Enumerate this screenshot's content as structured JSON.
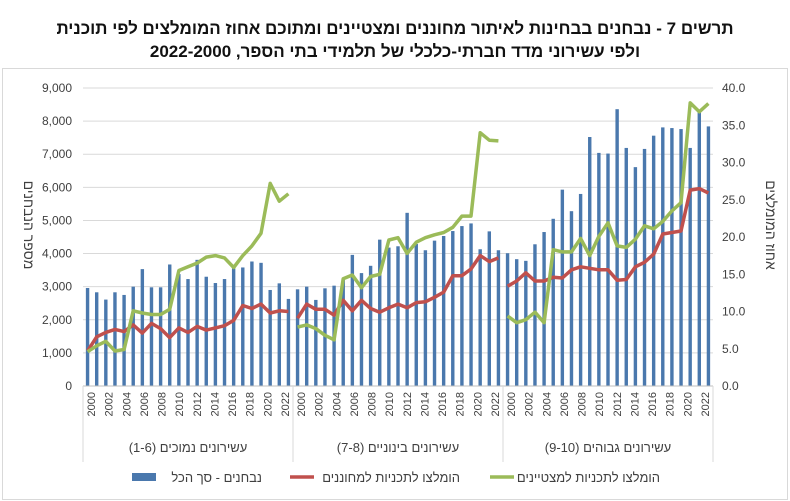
{
  "title": {
    "line1": "תרשים 7 - נבחנים בבחינות לאיתור מחוננים ומצטיינים ומתוכם אחוז המומלצים לפי תוכנית",
    "line2": "ולפי עשירוני מדד חברתי-כלכלי של תלמידי בתי הספר, 2022-2000"
  },
  "chart_data": {
    "type": "bar+line",
    "ylabel_left": "מספר הנבחנים",
    "ylabel_right": "אחוז המומלצים",
    "ylim_left": [
      0,
      9000
    ],
    "ylim_right": [
      0,
      40
    ],
    "yticks_left": [
      "0",
      "1,000",
      "2,000",
      "3,000",
      "4,000",
      "5,000",
      "6,000",
      "7,000",
      "8,000",
      "9,000"
    ],
    "yticks_right": [
      "0.0",
      "5.0",
      "10.0",
      "15.0",
      "20.0",
      "25.0",
      "30.0",
      "35.0",
      "40.0"
    ],
    "grid": true,
    "legend_position": "bottom",
    "years": [
      2000,
      2001,
      2002,
      2003,
      2004,
      2005,
      2006,
      2007,
      2008,
      2009,
      2010,
      2011,
      2012,
      2013,
      2014,
      2015,
      2016,
      2017,
      2018,
      2019,
      2020,
      2021,
      2022
    ],
    "year_tick_labels": [
      "2000",
      "2002",
      "2004",
      "2006",
      "2008",
      "2010",
      "2012",
      "2014",
      "2016",
      "2018",
      "2020",
      "2022"
    ],
    "legend": [
      {
        "name": "נבחנים - סך הכל",
        "color": "#4a78ad",
        "kind": "bar"
      },
      {
        "name": "הומלצו לתכניות למחוננים",
        "color": "#c0504d",
        "kind": "line"
      },
      {
        "name": "הומלצו לתכניות למצטיינים",
        "color": "#9bbb59",
        "kind": "line"
      }
    ],
    "groups": [
      {
        "label": "עשירונים נמוכים (1-6)",
        "examinees": [
          2960,
          2830,
          2610,
          2830,
          2750,
          3000,
          3530,
          2980,
          2980,
          3670,
          3380,
          3230,
          3810,
          3300,
          3110,
          3230,
          3550,
          3580,
          3760,
          3720,
          2900,
          3100,
          2630
        ],
        "gifted_pct": [
          4.7,
          6.6,
          7.2,
          7.6,
          7.3,
          8.2,
          7.1,
          8.4,
          7.7,
          6.5,
          7.8,
          7.2,
          8.0,
          7.5,
          7.8,
          8.1,
          8.8,
          10.8,
          10.4,
          11.0,
          9.8,
          10.1,
          10.0
        ],
        "excellent_pct": [
          4.6,
          5.4,
          6.0,
          4.7,
          4.9,
          10.1,
          9.8,
          9.6,
          9.6,
          10.3,
          15.5,
          16.0,
          16.5,
          17.3,
          17.5,
          17.2,
          15.9,
          17.5,
          18.8,
          20.5,
          27.2,
          24.8,
          25.8
        ]
      },
      {
        "label": "עשירונים בינוניים (7-8)",
        "examinees": [
          2920,
          3000,
          2600,
          2950,
          3030,
          3250,
          3960,
          3410,
          3630,
          4420,
          4180,
          4220,
          5230,
          4290,
          4100,
          4390,
          4530,
          4680,
          4830,
          4910,
          4130,
          4670,
          4100
        ],
        "gifted_pct": [
          9.1,
          11.0,
          10.3,
          10.3,
          9.5,
          11.5,
          10.1,
          11.5,
          10.4,
          9.9,
          10.5,
          11.0,
          10.5,
          11.2,
          11.3,
          11.9,
          12.6,
          14.8,
          14.8,
          15.7,
          17.5,
          16.7,
          17.2
        ],
        "excellent_pct": [
          7.9,
          8.2,
          7.7,
          6.8,
          6.2,
          14.4,
          14.9,
          13.2,
          14.7,
          15.0,
          19.6,
          19.9,
          17.8,
          19.3,
          19.9,
          20.3,
          20.6,
          21.3,
          22.8,
          22.8,
          34.0,
          33.0,
          32.9
        ]
      },
      {
        "label": "עשירונים גבוהים (9-10)",
        "examinees": [
          4010,
          3830,
          3780,
          4280,
          4650,
          5050,
          5930,
          5280,
          5800,
          7520,
          7040,
          7020,
          8360,
          7190,
          6610,
          7160,
          7560,
          7810,
          7790,
          7760,
          7190,
          8270,
          7840
        ],
        "gifted_pct": [
          13.4,
          14.1,
          15.2,
          14.1,
          14.1,
          14.6,
          14.5,
          15.6,
          16.0,
          15.8,
          15.6,
          15.6,
          14.2,
          14.3,
          16.0,
          16.6,
          17.7,
          20.4,
          20.6,
          20.8,
          26.3,
          26.5,
          25.9
        ],
        "excellent_pct": [
          9.4,
          8.5,
          8.9,
          9.9,
          8.5,
          18.3,
          18.0,
          18.0,
          19.8,
          17.5,
          20.1,
          21.9,
          18.8,
          18.6,
          19.7,
          21.5,
          21.1,
          22.1,
          23.5,
          24.6,
          38.0,
          36.8,
          37.9
        ]
      }
    ]
  }
}
